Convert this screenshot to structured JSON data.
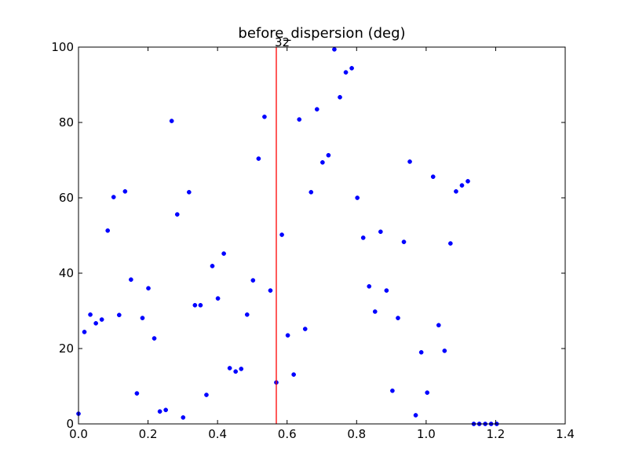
{
  "chart_data": {
    "type": "scatter",
    "title": "before_dispersion (deg)",
    "xlabel": "",
    "ylabel": "",
    "xlim": [
      0,
      1.4
    ],
    "ylim": [
      0,
      100
    ],
    "grid": false,
    "x_tick_labels": [
      "0.0",
      "0.2",
      "0.4",
      "0.6",
      "0.8",
      "1.0",
      "1.2",
      "1.4"
    ],
    "y_tick_labels": [
      "0",
      "20",
      "40",
      "60",
      "80",
      "100"
    ],
    "x_ticks": [
      0,
      0.2,
      0.4,
      0.6,
      0.8,
      1.0,
      1.2,
      1.4
    ],
    "y_ticks": [
      0,
      20,
      40,
      60,
      80,
      100
    ],
    "point_color": "#0000ff",
    "vline": {
      "x": 0.569,
      "color": "#ff0000",
      "label": "32"
    },
    "x": [
      0.0,
      0.017,
      0.034,
      0.05,
      0.067,
      0.084,
      0.101,
      0.117,
      0.134,
      0.151,
      0.168,
      0.184,
      0.201,
      0.218,
      0.234,
      0.251,
      0.268,
      0.284,
      0.301,
      0.318,
      0.335,
      0.351,
      0.368,
      0.385,
      0.401,
      0.418,
      0.435,
      0.452,
      0.468,
      0.485,
      0.502,
      0.518,
      0.535,
      0.552,
      0.569,
      0.585,
      0.602,
      0.619,
      0.635,
      0.652,
      0.669,
      0.686,
      0.702,
      0.719,
      0.736,
      0.752,
      0.769,
      0.786,
      0.802,
      0.819,
      0.836,
      0.853,
      0.869,
      0.886,
      0.903,
      0.919,
      0.936,
      0.953,
      0.97,
      0.986,
      1.003,
      1.02,
      1.036,
      1.053,
      1.07,
      1.086,
      1.103,
      1.12,
      1.137,
      1.153,
      1.17,
      1.187,
      1.203
    ],
    "y": [
      2.7,
      24.4,
      29.0,
      26.7,
      27.7,
      51.3,
      60.2,
      28.9,
      61.7,
      38.3,
      8.1,
      28.1,
      36.0,
      22.7,
      3.3,
      3.7,
      80.4,
      55.6,
      1.7,
      61.5,
      31.5,
      31.5,
      7.7,
      41.9,
      33.3,
      45.2,
      14.8,
      13.9,
      14.6,
      29.0,
      38.1,
      70.4,
      81.5,
      35.4,
      11.0,
      50.2,
      23.5,
      13.1,
      80.8,
      25.2,
      61.5,
      83.5,
      69.4,
      71.3,
      99.4,
      86.7,
      93.3,
      94.4,
      60.0,
      49.4,
      36.5,
      29.8,
      51.0,
      35.4,
      8.8,
      28.1,
      48.3,
      69.6,
      2.3,
      19.0,
      8.3,
      65.6,
      26.2,
      19.4,
      47.9,
      61.7,
      63.3,
      64.4,
      0.0,
      0.0,
      0.0,
      0.0,
      0.0
    ]
  }
}
